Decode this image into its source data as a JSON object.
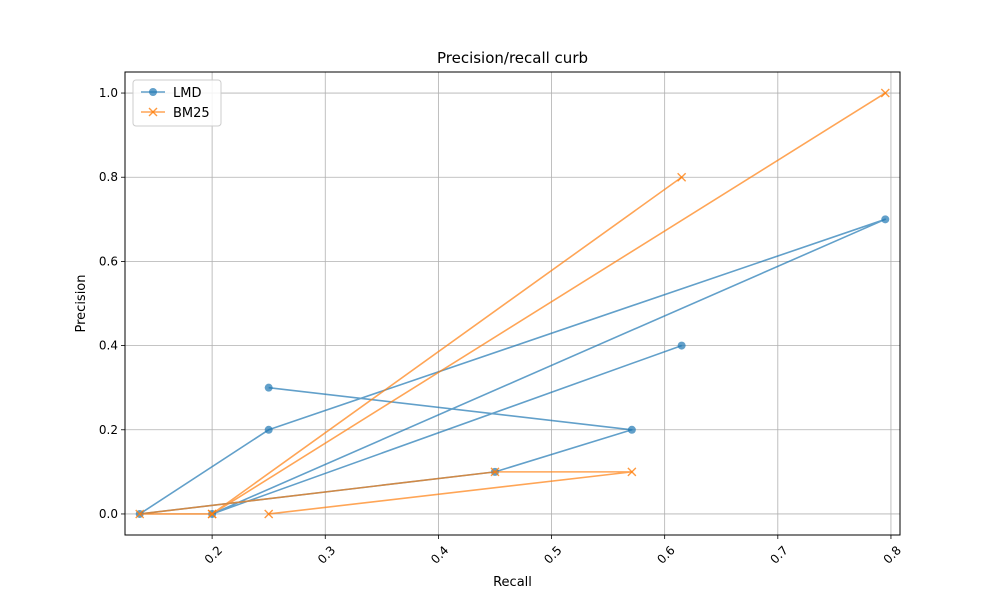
{
  "chart_data": {
    "type": "line",
    "title": "Precision/recall curb",
    "xlabel": "Recall",
    "ylabel": "Precision",
    "xlim": [
      0.123,
      0.808
    ],
    "ylim": [
      -0.05,
      1.05
    ],
    "xticks": [
      0.2,
      0.3,
      0.4,
      0.5,
      0.6,
      0.7,
      0.8
    ],
    "xtick_labels": [
      "0.2",
      "0.3",
      "0.4",
      "0.5",
      "0.6",
      "0.7",
      "0.8"
    ],
    "yticks": [
      0.0,
      0.2,
      0.4,
      0.6,
      0.8,
      1.0
    ],
    "ytick_labels": [
      "0.0",
      "0.2",
      "0.4",
      "0.6",
      "0.8",
      "1.0"
    ],
    "grid": true,
    "legend_position": "top-left",
    "series": [
      {
        "name": "LMD",
        "color": "#1f77b4",
        "marker": "circle",
        "x": [
          0.25,
          0.571,
          0.45,
          0.136,
          0.25,
          0.795,
          0.2,
          0.615
        ],
        "y": [
          0.3,
          0.2,
          0.1,
          0.0,
          0.2,
          0.7,
          0.0,
          0.4
        ]
      },
      {
        "name": "BM25",
        "color": "#ff7f0e",
        "marker": "x",
        "x": [
          0.25,
          0.571,
          0.45,
          0.136,
          0.2,
          0.795,
          0.2,
          0.615
        ],
        "y": [
          0.0,
          0.1,
          0.1,
          0.0,
          0.0,
          1.0,
          0.0,
          0.8
        ]
      }
    ]
  }
}
